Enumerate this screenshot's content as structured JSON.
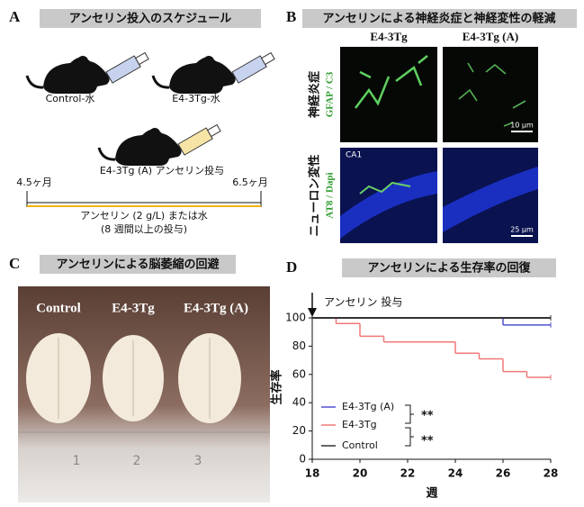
{
  "panel_a": {
    "label": "A",
    "title": "アンセリン投入のスケジュール",
    "groups": [
      "Control-水",
      "E4-3Tg-水",
      "E4-3Tg (A) アンセリン投与"
    ],
    "timeline_start": "4.5ヶ月",
    "timeline_end": "6.5ヶ月",
    "treatment": "アンセリン (2 g/L) または水",
    "duration": "(8 週間以上の投与)"
  },
  "panel_b": {
    "label": "B",
    "title": "アンセリンによる神経炎症と神経変性の軽減",
    "columns": [
      "E4-3Tg",
      "E4-3Tg (A)"
    ],
    "rows": [
      {
        "name": "神経炎症",
        "stain": "GFAP / C3",
        "scale": "10 µm"
      },
      {
        "name": "ニューロン変性",
        "stain": "AT8 / Dapi",
        "scale": "25 µm",
        "region": "CA1"
      }
    ]
  },
  "panel_c": {
    "label": "C",
    "title": "アンセリンによる脳萎縮の回避",
    "labels": [
      "Control",
      "E4-3Tg",
      "E4-3Tg (A)"
    ],
    "ruler": [
      "1",
      "2",
      "3"
    ]
  },
  "chart_data": {
    "type": "line",
    "label": "D",
    "title": "アンセリンによる生存率の回復",
    "annotation": "アンセリン 投与",
    "xlabel": "週",
    "ylabel": "生存率",
    "xlim": [
      18,
      28
    ],
    "xticks": [
      18,
      20,
      22,
      24,
      26,
      28
    ],
    "ylim": [
      0,
      100
    ],
    "yticks": [
      0,
      20,
      40,
      60,
      80,
      100
    ],
    "series": [
      {
        "name": "E4-3Tg (A)",
        "color": "#5050d0",
        "x": [
          18,
          26,
          28
        ],
        "values": [
          100,
          95,
          95
        ]
      },
      {
        "name": "E4-3Tg",
        "color": "#f07878",
        "x": [
          18,
          19,
          20,
          21,
          24,
          25,
          26,
          27,
          28
        ],
        "values": [
          100,
          96,
          87,
          83,
          75,
          71,
          62,
          58,
          58
        ]
      },
      {
        "name": "Control",
        "color": "#333333",
        "x": [
          18,
          28
        ],
        "values": [
          100,
          100
        ]
      }
    ],
    "significance": [
      "**",
      "**"
    ]
  }
}
